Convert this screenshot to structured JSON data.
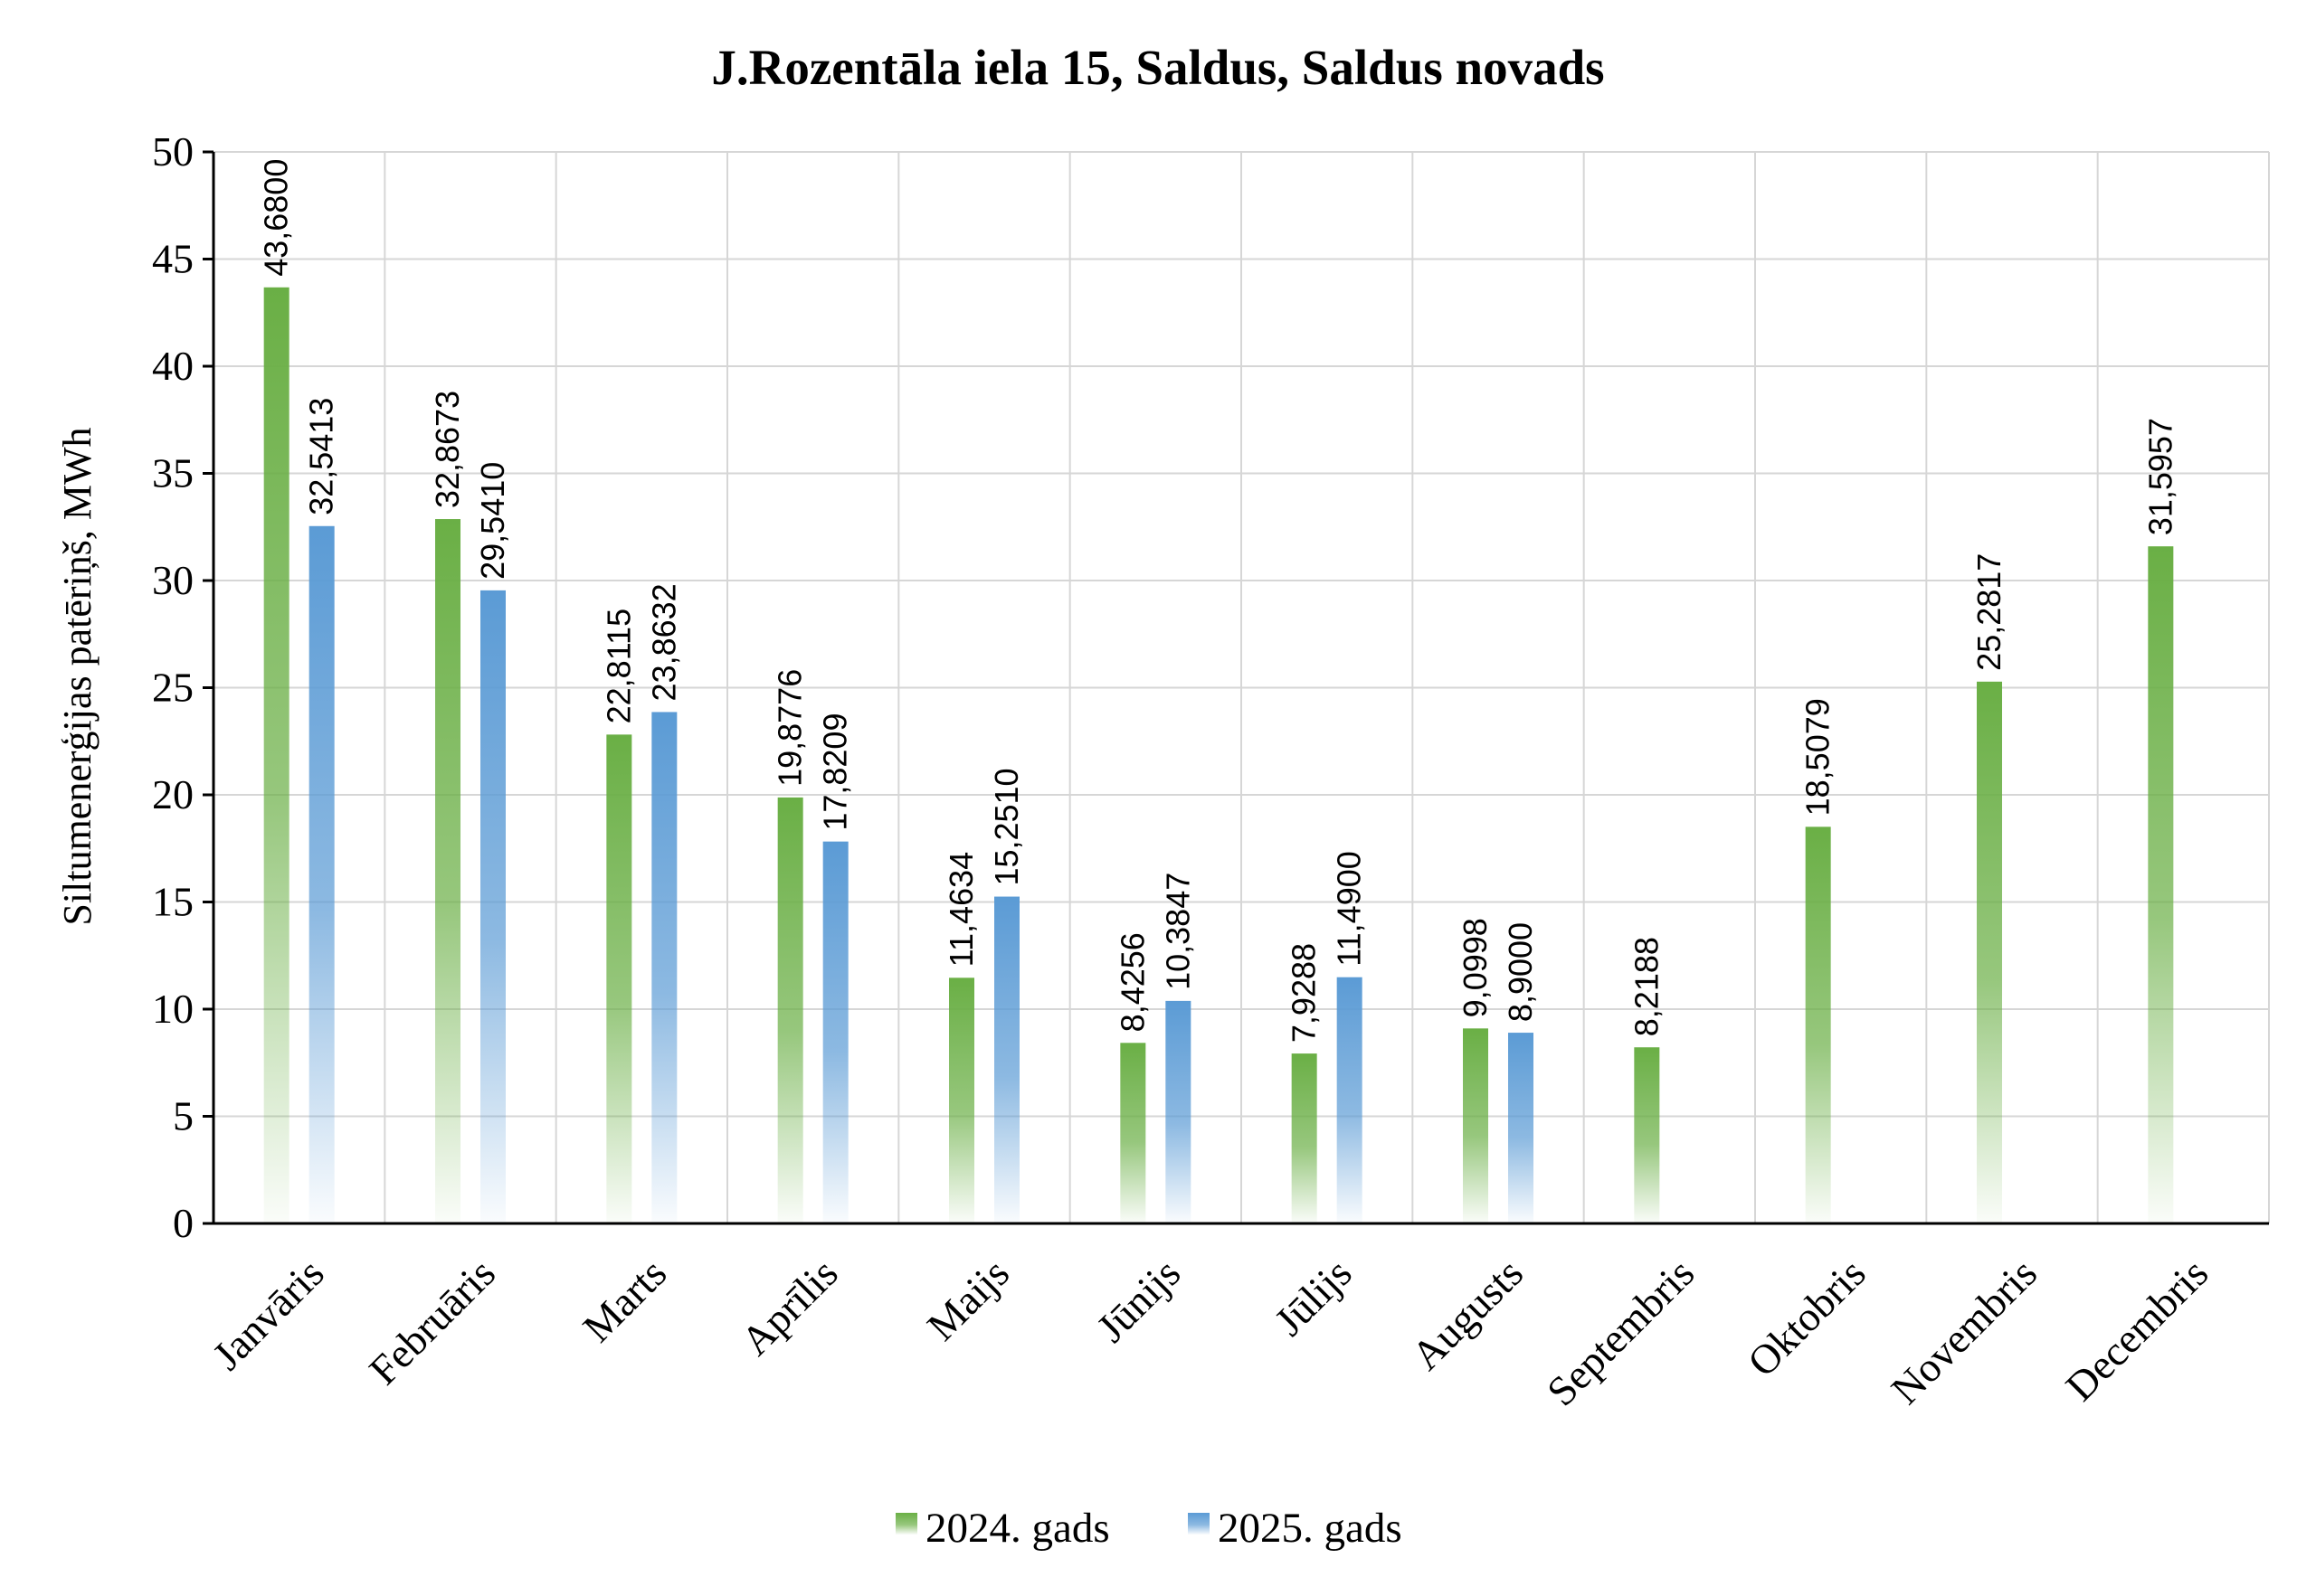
{
  "chart_data": {
    "type": "bar",
    "title": "J.Rozentāla iela 15, Saldus, Saldus novads",
    "ylabel": "Siltumenerģijas patēriņš, MWh",
    "xlabel": "",
    "ylim": [
      0,
      50
    ],
    "yticks": [
      0,
      5,
      10,
      15,
      20,
      25,
      30,
      35,
      40,
      45,
      50
    ],
    "grid": true,
    "legend_position": "bottom",
    "categories": [
      "Janvāris",
      "Februāris",
      "Marts",
      "Aprīlis",
      "Maijs",
      "Jūnijs",
      "Jūlijs",
      "Augusts",
      "Septembris",
      "Oktobris",
      "Novembris",
      "Decembris"
    ],
    "series": [
      {
        "name": "2024. gads",
        "color": "#6aaf45",
        "values": [
          43.68,
          32.8673,
          22.8115,
          19.8776,
          11.4634,
          8.4256,
          7.9288,
          9.0998,
          8.2188,
          18.5079,
          25.2817,
          31.5957
        ],
        "labels": [
          "43,6800",
          "32,8673",
          "22,8115",
          "19,8776",
          "11,4634",
          "8,4256",
          "7,9288",
          "9,0998",
          "8,2188",
          "18,5079",
          "25,2817",
          "31,5957"
        ]
      },
      {
        "name": "2025. gads",
        "color": "#5b9bd5",
        "values": [
          32.5413,
          29.541,
          23.8632,
          17.8209,
          15.251,
          10.3847,
          11.49,
          8.9,
          null,
          null,
          null,
          null
        ],
        "labels": [
          "32,5413",
          "29,5410",
          "23,8632",
          "17,8209",
          "15,2510",
          "10,3847",
          "11,4900",
          "8,9000",
          null,
          null,
          null,
          null
        ]
      }
    ]
  }
}
